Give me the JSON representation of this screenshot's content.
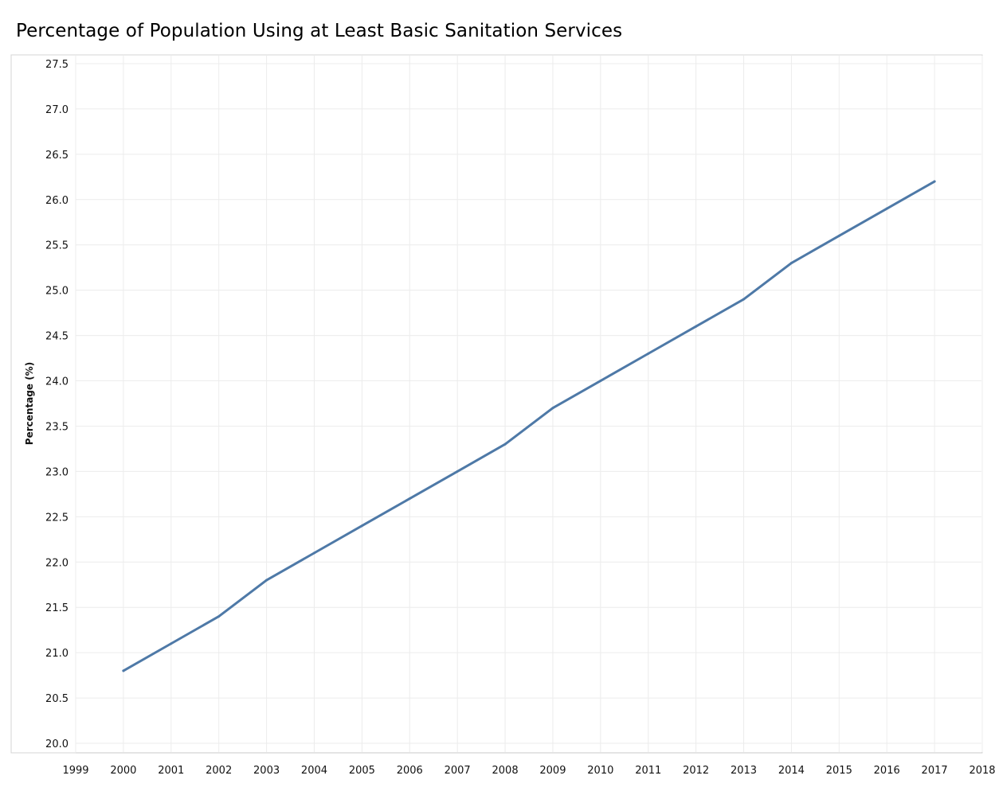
{
  "chart_data": {
    "type": "line",
    "title": "Percentage of Population Using at Least Basic Sanitation Services",
    "xlabel": "",
    "ylabel": "Percentage (%)",
    "xlim": [
      1999,
      2018
    ],
    "ylim": [
      20.0,
      27.5
    ],
    "x_ticks": [
      1999,
      2000,
      2001,
      2002,
      2003,
      2004,
      2005,
      2006,
      2007,
      2008,
      2009,
      2010,
      2011,
      2012,
      2013,
      2014,
      2015,
      2016,
      2017,
      2018
    ],
    "y_ticks": [
      "20.0",
      "20.5",
      "21.0",
      "21.5",
      "22.0",
      "22.5",
      "23.0",
      "23.5",
      "24.0",
      "24.5",
      "25.0",
      "25.5",
      "26.0",
      "26.5",
      "27.0",
      "27.5"
    ],
    "grid": true,
    "series": [
      {
        "color": "#4e79a7",
        "x": [
          2000,
          2001,
          2002,
          2003,
          2004,
          2005,
          2006,
          2007,
          2008,
          2009,
          2010,
          2011,
          2012,
          2013,
          2014,
          2015,
          2016,
          2017
        ],
        "values": [
          20.8,
          21.1,
          21.4,
          21.8,
          22.1,
          22.4,
          22.7,
          23.0,
          23.3,
          23.7,
          24.0,
          24.3,
          24.6,
          24.9,
          25.3,
          25.6,
          25.9,
          26.2
        ]
      }
    ]
  }
}
